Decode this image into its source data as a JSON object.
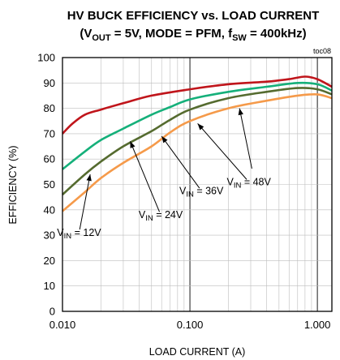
{
  "chart_data": {
    "type": "line",
    "title_line1": "HV BUCK EFFICIENCY vs. LOAD CURRENT",
    "title_line2": {
      "p1": "(V",
      "s1": "OUT",
      "p2": " = 5V, MODE = PFM, f",
      "s2": "SW",
      "p3": " = 400kHz)"
    },
    "tag": "toc08",
    "xlabel": "LOAD CURRENT (A)",
    "ylabel": "EFFICIENCY (%)",
    "xscale": "log",
    "xlim": [
      0.01,
      1.3
    ],
    "ylim": [
      0,
      100
    ],
    "grid": true,
    "x_ticks": [
      {
        "value": 0.01,
        "label": "0.010"
      },
      {
        "value": 0.1,
        "label": "0.100"
      },
      {
        "value": 1,
        "label": "1.000"
      }
    ],
    "y_ticks": [
      0,
      10,
      20,
      30,
      40,
      50,
      60,
      70,
      80,
      90,
      100
    ],
    "series": [
      {
        "name": "VIN = 12V",
        "color": "#c0151b",
        "points": [
          [
            0.01,
            70
          ],
          [
            0.012,
            74
          ],
          [
            0.015,
            77.5
          ],
          [
            0.02,
            79.5
          ],
          [
            0.03,
            82
          ],
          [
            0.05,
            85
          ],
          [
            0.1,
            87.5
          ],
          [
            0.2,
            89.5
          ],
          [
            0.4,
            90.5
          ],
          [
            0.6,
            91.5
          ],
          [
            0.8,
            92.5
          ],
          [
            1.0,
            91.5
          ],
          [
            1.3,
            88.5
          ]
        ]
      },
      {
        "name": "VIN = 24V",
        "color": "#15b07a",
        "points": [
          [
            0.01,
            56
          ],
          [
            0.015,
            63
          ],
          [
            0.02,
            67.5
          ],
          [
            0.03,
            72
          ],
          [
            0.05,
            77.5
          ],
          [
            0.07,
            80.5
          ],
          [
            0.1,
            83.5
          ],
          [
            0.2,
            86.5
          ],
          [
            0.4,
            88.5
          ],
          [
            0.7,
            90
          ],
          [
            1.0,
            89.5
          ],
          [
            1.3,
            87
          ]
        ]
      },
      {
        "name": "VIN = 36V",
        "color": "#556b2f",
        "points": [
          [
            0.01,
            46
          ],
          [
            0.015,
            54
          ],
          [
            0.02,
            59
          ],
          [
            0.03,
            65
          ],
          [
            0.05,
            71
          ],
          [
            0.07,
            75.5
          ],
          [
            0.1,
            79.5
          ],
          [
            0.2,
            84
          ],
          [
            0.4,
            86.5
          ],
          [
            0.7,
            88
          ],
          [
            1.0,
            87.5
          ],
          [
            1.3,
            85.5
          ]
        ]
      },
      {
        "name": "VIN = 48V",
        "color": "#f59a4a",
        "points": [
          [
            0.01,
            39.5
          ],
          [
            0.015,
            47
          ],
          [
            0.02,
            52.5
          ],
          [
            0.03,
            58.5
          ],
          [
            0.05,
            65
          ],
          [
            0.07,
            70.5
          ],
          [
            0.1,
            75
          ],
          [
            0.2,
            80
          ],
          [
            0.4,
            83
          ],
          [
            0.7,
            85
          ],
          [
            1.0,
            85.5
          ],
          [
            1.3,
            84
          ]
        ]
      }
    ],
    "annotations": [
      {
        "pre": "V",
        "sub": "IN",
        "post": " = 12V",
        "text_at": [
          0.0135,
          31
        ],
        "arrow_to": [
          0.0165,
          54
        ]
      },
      {
        "pre": "V",
        "sub": "IN",
        "post": " = 24V",
        "text_at": [
          0.059,
          38
        ],
        "arrow_to": [
          0.034,
          67
        ]
      },
      {
        "pre": "V",
        "sub": "IN",
        "post": " = 36V",
        "text_at": [
          0.123,
          47.5
        ],
        "arrow_to": [
          0.06,
          69
        ]
      },
      {
        "pre": "V",
        "sub": "IN",
        "post": " = 48V",
        "text_at": [
          0.29,
          51
        ],
        "arrow_to": [
          0.115,
          74
        ]
      },
      {
        "pre": "",
        "sub": "",
        "post": "",
        "text_at": [
          0.31,
          55
        ],
        "arrow_to": [
          0.245,
          80
        ]
      }
    ]
  }
}
